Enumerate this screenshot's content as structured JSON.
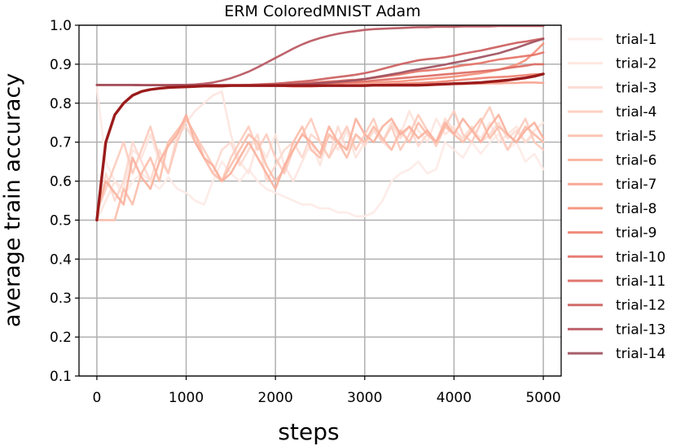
{
  "chart_data": {
    "type": "line",
    "title": "ERM ColoredMNIST Adam",
    "xlabel": "steps",
    "ylabel": "average train accuracy",
    "xlim": [
      -200,
      5200
    ],
    "ylim": [
      0.1,
      1.0
    ],
    "xticks": [
      0,
      1000,
      2000,
      3000,
      4000,
      5000
    ],
    "yticks": [
      0.1,
      0.2,
      0.3,
      0.4,
      0.5,
      0.6,
      0.7,
      0.8,
      0.9,
      1.0
    ],
    "grid": true,
    "legend_position": "right-outside-top",
    "x": [
      0,
      100,
      200,
      300,
      400,
      500,
      600,
      700,
      800,
      900,
      1000,
      1100,
      1200,
      1300,
      1400,
      1500,
      1600,
      1700,
      1800,
      1900,
      2000,
      2100,
      2200,
      2300,
      2400,
      2500,
      2600,
      2700,
      2800,
      2900,
      3000,
      3100,
      3200,
      3300,
      3400,
      3500,
      3600,
      3700,
      3800,
      3900,
      4000,
      4100,
      4200,
      4300,
      4400,
      4500,
      4600,
      4700,
      4800,
      4900,
      5000
    ],
    "series": [
      {
        "name": "trial-1",
        "color": "#fdeae6",
        "opacity": 0.9,
        "values": [
          0.84,
          0.65,
          0.6,
          0.56,
          0.6,
          0.62,
          0.6,
          0.58,
          0.61,
          0.58,
          0.57,
          0.55,
          0.54,
          0.6,
          0.65,
          0.62,
          0.6,
          0.63,
          0.6,
          0.58,
          0.57,
          0.56,
          0.55,
          0.54,
          0.54,
          0.53,
          0.53,
          0.52,
          0.52,
          0.51,
          0.51,
          0.52,
          0.55,
          0.6,
          0.62,
          0.63,
          0.65,
          0.62,
          0.63,
          0.7,
          0.68,
          0.66,
          0.7,
          0.67,
          0.7,
          0.72,
          0.68,
          0.7,
          0.65,
          0.67,
          0.63
        ]
      },
      {
        "name": "trial-2",
        "color": "#fde4de",
        "opacity": 0.9,
        "values": [
          0.5,
          0.55,
          0.6,
          0.58,
          0.68,
          0.66,
          0.72,
          0.65,
          0.7,
          0.72,
          0.75,
          0.78,
          0.8,
          0.82,
          0.83,
          0.72,
          0.65,
          0.62,
          0.7,
          0.66,
          0.72,
          0.64,
          0.6,
          0.65,
          0.7,
          0.64,
          0.72,
          0.68,
          0.73,
          0.66,
          0.7,
          0.74,
          0.7,
          0.68,
          0.72,
          0.78,
          0.73,
          0.7,
          0.76,
          0.72,
          0.74,
          0.7,
          0.73,
          0.71,
          0.75,
          0.7,
          0.72,
          0.74,
          0.7,
          0.73,
          0.75
        ]
      },
      {
        "name": "trial-3",
        "color": "#fcd9cf",
        "opacity": 0.9,
        "values": [
          0.5,
          0.62,
          0.55,
          0.6,
          0.7,
          0.65,
          0.6,
          0.68,
          0.62,
          0.72,
          0.74,
          0.7,
          0.66,
          0.62,
          0.68,
          0.7,
          0.64,
          0.68,
          0.72,
          0.6,
          0.64,
          0.68,
          0.7,
          0.66,
          0.72,
          0.7,
          0.66,
          0.74,
          0.68,
          0.72,
          0.69,
          0.73,
          0.7,
          0.75,
          0.71,
          0.74,
          0.69,
          0.72,
          0.7,
          0.76,
          0.73,
          0.71,
          0.74,
          0.7,
          0.72,
          0.75,
          0.71,
          0.73,
          0.7,
          0.72,
          0.7
        ]
      },
      {
        "name": "trial-4",
        "color": "#fccbbd",
        "opacity": 0.9,
        "values": [
          0.52,
          0.58,
          0.64,
          0.7,
          0.62,
          0.68,
          0.74,
          0.66,
          0.62,
          0.7,
          0.76,
          0.72,
          0.68,
          0.64,
          0.6,
          0.66,
          0.7,
          0.74,
          0.68,
          0.72,
          0.66,
          0.62,
          0.68,
          0.72,
          0.76,
          0.7,
          0.66,
          0.7,
          0.74,
          0.68,
          0.72,
          0.76,
          0.7,
          0.74,
          0.68,
          0.72,
          0.77,
          0.73,
          0.69,
          0.74,
          0.78,
          0.72,
          0.7,
          0.75,
          0.79,
          0.73,
          0.68,
          0.72,
          0.76,
          0.7,
          0.68
        ]
      },
      {
        "name": "trial-5",
        "color": "#fbbeab",
        "opacity": 0.9,
        "values": [
          0.5,
          0.5,
          0.5,
          0.58,
          0.54,
          0.62,
          0.66,
          0.6,
          0.7,
          0.73,
          0.76,
          0.72,
          0.66,
          0.62,
          0.6,
          0.64,
          0.68,
          0.72,
          0.7,
          0.64,
          0.6,
          0.63,
          0.7,
          0.74,
          0.68,
          0.66,
          0.72,
          0.7,
          0.66,
          0.72,
          0.7,
          0.74,
          0.71,
          0.68,
          0.73,
          0.7,
          0.75,
          0.72,
          0.7,
          0.74,
          0.72,
          0.7,
          0.73,
          0.76,
          0.71,
          0.74,
          0.72,
          0.7,
          0.74,
          0.72,
          0.7
        ]
      },
      {
        "name": "trial-6",
        "color": "#f9b09c",
        "opacity": 0.9,
        "values": [
          0.52,
          0.6,
          0.57,
          0.54,
          0.66,
          0.61,
          0.58,
          0.65,
          0.69,
          0.72,
          0.77,
          0.7,
          0.66,
          0.64,
          0.6,
          0.62,
          0.66,
          0.7,
          0.66,
          0.62,
          0.58,
          0.64,
          0.68,
          0.72,
          0.7,
          0.67,
          0.74,
          0.7,
          0.68,
          0.76,
          0.72,
          0.7,
          0.74,
          0.76,
          0.72,
          0.74,
          0.71,
          0.73,
          0.7,
          0.75,
          0.72,
          0.76,
          0.73,
          0.7,
          0.74,
          0.77,
          0.72,
          0.7,
          0.73,
          0.75,
          0.71
        ]
      },
      {
        "name": "trial-7",
        "color": "#f7a38e",
        "opacity": 0.92,
        "values": [
          0.847,
          0.847,
          0.847,
          0.847,
          0.847,
          0.846,
          0.846,
          0.846,
          0.846,
          0.846,
          0.846,
          0.846,
          0.846,
          0.846,
          0.846,
          0.846,
          0.846,
          0.846,
          0.846,
          0.846,
          0.846,
          0.846,
          0.845,
          0.845,
          0.845,
          0.845,
          0.845,
          0.845,
          0.845,
          0.845,
          0.845,
          0.845,
          0.845,
          0.846,
          0.846,
          0.846,
          0.847,
          0.847,
          0.848,
          0.848,
          0.849,
          0.849,
          0.85,
          0.85,
          0.851,
          0.851,
          0.852,
          0.852,
          0.853,
          0.853,
          0.852
        ]
      },
      {
        "name": "trial-8",
        "color": "#f4907c",
        "opacity": 0.92,
        "values": [
          0.847,
          0.847,
          0.847,
          0.847,
          0.847,
          0.846,
          0.846,
          0.846,
          0.846,
          0.846,
          0.846,
          0.846,
          0.846,
          0.846,
          0.846,
          0.846,
          0.846,
          0.847,
          0.847,
          0.847,
          0.848,
          0.848,
          0.849,
          0.849,
          0.85,
          0.85,
          0.851,
          0.851,
          0.852,
          0.852,
          0.853,
          0.853,
          0.854,
          0.855,
          0.856,
          0.858,
          0.86,
          0.862,
          0.864,
          0.866,
          0.868,
          0.871,
          0.874,
          0.877,
          0.881,
          0.886,
          0.892,
          0.899,
          0.91,
          0.93,
          0.953
        ]
      },
      {
        "name": "trial-9",
        "color": "#ef8170",
        "opacity": 0.92,
        "values": [
          0.847,
          0.847,
          0.847,
          0.847,
          0.847,
          0.846,
          0.846,
          0.846,
          0.846,
          0.846,
          0.846,
          0.846,
          0.846,
          0.846,
          0.846,
          0.846,
          0.845,
          0.845,
          0.845,
          0.845,
          0.845,
          0.844,
          0.843,
          0.843,
          0.843,
          0.844,
          0.845,
          0.845,
          0.846,
          0.846,
          0.847,
          0.847,
          0.848,
          0.849,
          0.85,
          0.851,
          0.852,
          0.853,
          0.854,
          0.856,
          0.858,
          0.86,
          0.862,
          0.864,
          0.866,
          0.867,
          0.868,
          0.87,
          0.872,
          0.874,
          0.875
        ]
      },
      {
        "name": "trial-10",
        "color": "#e57367",
        "opacity": 0.92,
        "values": [
          0.847,
          0.847,
          0.847,
          0.847,
          0.847,
          0.846,
          0.846,
          0.846,
          0.846,
          0.846,
          0.846,
          0.846,
          0.846,
          0.846,
          0.846,
          0.846,
          0.846,
          0.847,
          0.847,
          0.848,
          0.849,
          0.85,
          0.851,
          0.852,
          0.853,
          0.854,
          0.856,
          0.857,
          0.859,
          0.86,
          0.862,
          0.865,
          0.868,
          0.871,
          0.874,
          0.878,
          0.882,
          0.884,
          0.886,
          0.889,
          0.893,
          0.897,
          0.9,
          0.903,
          0.908,
          0.912,
          0.915,
          0.918,
          0.921,
          0.924,
          0.93
        ]
      },
      {
        "name": "trial-11",
        "color": "#dc6b63",
        "opacity": 0.92,
        "values": [
          0.847,
          0.847,
          0.847,
          0.847,
          0.847,
          0.846,
          0.846,
          0.846,
          0.846,
          0.846,
          0.846,
          0.846,
          0.846,
          0.846,
          0.846,
          0.846,
          0.846,
          0.846,
          0.846,
          0.847,
          0.847,
          0.848,
          0.848,
          0.849,
          0.85,
          0.851,
          0.852,
          0.853,
          0.854,
          0.855,
          0.856,
          0.858,
          0.86,
          0.862,
          0.864,
          0.866,
          0.868,
          0.87,
          0.872,
          0.874,
          0.876,
          0.878,
          0.88,
          0.882,
          0.884,
          0.886,
          0.89,
          0.893,
          0.896,
          0.9,
          0.9
        ]
      },
      {
        "name": "trial-12",
        "color": "#cc5e5e",
        "opacity": 0.92,
        "values": [
          0.847,
          0.847,
          0.847,
          0.847,
          0.847,
          0.846,
          0.846,
          0.846,
          0.846,
          0.846,
          0.846,
          0.846,
          0.846,
          0.846,
          0.846,
          0.846,
          0.846,
          0.847,
          0.848,
          0.849,
          0.85,
          0.852,
          0.854,
          0.856,
          0.858,
          0.861,
          0.864,
          0.867,
          0.87,
          0.873,
          0.877,
          0.882,
          0.888,
          0.894,
          0.9,
          0.905,
          0.91,
          0.913,
          0.915,
          0.918,
          0.922,
          0.927,
          0.931,
          0.935,
          0.94,
          0.945,
          0.95,
          0.955,
          0.958,
          0.962,
          0.966
        ]
      },
      {
        "name": "trial-13",
        "color": "#b85660",
        "opacity": 0.92,
        "values": [
          0.847,
          0.847,
          0.847,
          0.847,
          0.847,
          0.846,
          0.846,
          0.846,
          0.846,
          0.847,
          0.847,
          0.848,
          0.85,
          0.853,
          0.858,
          0.864,
          0.872,
          0.881,
          0.892,
          0.904,
          0.916,
          0.928,
          0.94,
          0.951,
          0.96,
          0.967,
          0.973,
          0.978,
          0.982,
          0.985,
          0.988,
          0.99,
          0.991,
          0.992,
          0.993,
          0.994,
          0.995,
          0.995,
          0.996,
          0.996,
          0.996,
          0.997,
          0.997,
          0.997,
          0.997,
          0.998,
          0.998,
          0.998,
          0.998,
          0.998,
          0.998
        ]
      },
      {
        "name": "trial-14",
        "color": "#a0505e",
        "opacity": 0.92,
        "values": [
          0.847,
          0.847,
          0.847,
          0.847,
          0.847,
          0.846,
          0.846,
          0.846,
          0.846,
          0.846,
          0.846,
          0.846,
          0.846,
          0.846,
          0.846,
          0.846,
          0.846,
          0.846,
          0.846,
          0.846,
          0.847,
          0.847,
          0.848,
          0.849,
          0.85,
          0.852,
          0.853,
          0.855,
          0.857,
          0.859,
          0.862,
          0.866,
          0.87,
          0.874,
          0.878,
          0.883,
          0.887,
          0.891,
          0.895,
          0.899,
          0.904,
          0.908,
          0.913,
          0.918,
          0.923,
          0.928,
          0.935,
          0.942,
          0.95,
          0.958,
          0.965
        ]
      },
      {
        "name": "",
        "color": "#9b1b1b",
        "opacity": 1,
        "width": 3.4,
        "values": [
          0.5,
          0.7,
          0.77,
          0.8,
          0.82,
          0.83,
          0.835,
          0.838,
          0.84,
          0.841,
          0.842,
          0.843,
          0.844,
          0.844,
          0.844,
          0.845,
          0.845,
          0.845,
          0.845,
          0.845,
          0.845,
          0.845,
          0.845,
          0.845,
          0.845,
          0.845,
          0.845,
          0.845,
          0.845,
          0.845,
          0.845,
          0.846,
          0.846,
          0.846,
          0.846,
          0.846,
          0.846,
          0.847,
          0.848,
          0.849,
          0.85,
          0.851,
          0.852,
          0.853,
          0.855,
          0.857,
          0.859,
          0.862,
          0.865,
          0.869,
          0.875
        ]
      }
    ]
  }
}
